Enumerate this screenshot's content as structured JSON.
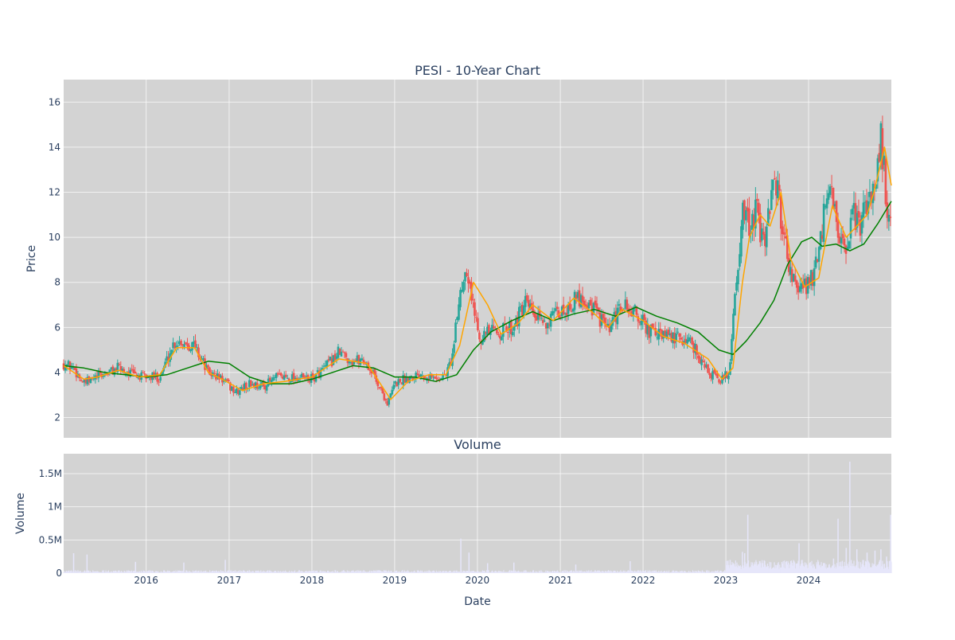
{
  "chart_data": [
    {
      "type": "candlestick",
      "title": "PESI - 10-Year Chart",
      "xlabel": "",
      "ylabel": "Price",
      "ylim": [
        1.1,
        17.0
      ],
      "xlim": [
        "2015-01-02",
        "2024-12-31"
      ],
      "y_ticks": [
        2,
        4,
        6,
        8,
        10,
        12,
        14,
        16
      ],
      "grid": true,
      "colors": {
        "up": "#26a69a",
        "down": "#ef5350",
        "ma_short": "#ffa500",
        "ma_long": "#008000",
        "background": "#d3d3d3"
      },
      "close_series": {
        "name": "Close",
        "x": [
          "2015-01-02",
          "2015-02-15",
          "2015-04-01",
          "2015-06-01",
          "2015-09-01",
          "2015-12-01",
          "2016-03-01",
          "2016-05-01",
          "2016-06-01",
          "2016-08-01",
          "2016-10-01",
          "2016-12-01",
          "2017-02-01",
          "2017-04-01",
          "2017-06-01",
          "2017-08-01",
          "2017-10-01",
          "2018-01-01",
          "2018-03-01",
          "2018-05-01",
          "2018-07-01",
          "2018-08-15",
          "2018-10-01",
          "2018-12-01",
          "2019-01-01",
          "2019-03-01",
          "2019-05-01",
          "2019-07-01",
          "2019-08-15",
          "2019-09-15",
          "2019-10-15",
          "2019-11-15",
          "2019-12-15",
          "2020-01-15",
          "2020-03-01",
          "2020-04-01",
          "2020-06-01",
          "2020-08-01",
          "2020-10-01",
          "2020-12-01",
          "2021-02-01",
          "2021-04-01",
          "2021-06-01",
          "2021-08-01",
          "2021-10-01",
          "2021-12-01",
          "2022-02-01",
          "2022-04-01",
          "2022-06-01",
          "2022-08-01",
          "2022-10-01",
          "2022-12-01",
          "2023-01-15",
          "2023-02-15",
          "2023-03-15",
          "2023-04-15",
          "2023-05-15",
          "2023-06-15",
          "2023-07-15",
          "2023-08-15",
          "2023-09-15",
          "2023-10-15",
          "2023-11-15",
          "2023-12-15",
          "2024-01-15",
          "2024-02-15",
          "2024-03-15",
          "2024-04-15",
          "2024-05-15",
          "2024-06-15",
          "2024-07-15",
          "2024-08-15",
          "2024-09-15",
          "2024-10-15",
          "2024-11-15",
          "2024-12-15",
          "2024-12-31"
        ],
        "y": [
          4.4,
          4.2,
          3.5,
          3.8,
          4.2,
          3.8,
          3.8,
          5.3,
          5.4,
          5.2,
          4.0,
          3.7,
          3.1,
          3.5,
          3.4,
          3.8,
          3.8,
          3.7,
          4.2,
          4.9,
          4.5,
          4.6,
          3.9,
          2.6,
          3.5,
          3.8,
          4.0,
          3.7,
          3.9,
          4.8,
          7.5,
          8.8,
          6.8,
          5.6,
          5.8,
          5.8,
          6.0,
          7.0,
          6.2,
          6.4,
          6.9,
          7.4,
          6.8,
          5.8,
          7.0,
          6.6,
          5.8,
          5.6,
          5.5,
          5.4,
          4.2,
          3.6,
          4.0,
          8.0,
          11.0,
          10.5,
          11.2,
          9.5,
          11.8,
          12.2,
          10.0,
          8.5,
          7.5,
          7.8,
          8.2,
          9.0,
          11.5,
          11.8,
          10.0,
          9.0,
          11.0,
          10.5,
          11.5,
          12.2,
          14.5,
          11.0,
          10.8
        ]
      },
      "ma_short": {
        "name": "MA short",
        "x": [
          "2015-01-02",
          "2015-04-01",
          "2015-06-01",
          "2015-09-01",
          "2015-12-01",
          "2016-03-01",
          "2016-05-15",
          "2016-08-01",
          "2016-10-01",
          "2016-12-01",
          "2017-03-01",
          "2017-06-01",
          "2017-09-01",
          "2018-01-01",
          "2018-05-01",
          "2018-09-01",
          "2018-12-15",
          "2019-03-01",
          "2019-06-01",
          "2019-08-15",
          "2019-10-15",
          "2019-12-15",
          "2020-02-15",
          "2020-04-15",
          "2020-07-01",
          "2020-09-01",
          "2020-12-01",
          "2021-03-01",
          "2021-06-01",
          "2021-08-01",
          "2021-10-01",
          "2022-01-01",
          "2022-04-01",
          "2022-07-01",
          "2022-10-15",
          "2022-12-15",
          "2023-02-01",
          "2023-03-15",
          "2023-04-15",
          "2023-06-01",
          "2023-07-15",
          "2023-09-01",
          "2023-10-15",
          "2023-12-15",
          "2024-02-15",
          "2024-04-15",
          "2024-06-15",
          "2024-08-01",
          "2024-09-15",
          "2024-10-15",
          "2024-12-01",
          "2024-12-31"
        ],
        "y": [
          4.3,
          3.7,
          3.8,
          4.1,
          3.8,
          3.9,
          5.1,
          5.1,
          4.0,
          3.7,
          3.2,
          3.5,
          3.6,
          3.8,
          4.6,
          4.4,
          2.8,
          3.6,
          3.9,
          3.9,
          5.2,
          8.0,
          7.0,
          5.7,
          6.2,
          7.0,
          6.3,
          7.3,
          6.6,
          6.0,
          6.8,
          6.3,
          5.6,
          5.3,
          4.6,
          3.7,
          4.2,
          8.0,
          10.0,
          11.0,
          10.5,
          12.0,
          9.0,
          7.8,
          8.2,
          11.4,
          10.0,
          10.5,
          11.0,
          12.0,
          14.0,
          12.3
        ]
      },
      "ma_long": {
        "name": "MA long",
        "x": [
          "2015-01-02",
          "2015-04-01",
          "2015-07-01",
          "2015-10-01",
          "2016-01-01",
          "2016-04-01",
          "2016-07-01",
          "2016-10-01",
          "2017-01-01",
          "2017-04-01",
          "2017-07-01",
          "2017-10-01",
          "2018-01-01",
          "2018-04-01",
          "2018-07-01",
          "2018-10-01",
          "2019-01-01",
          "2019-04-01",
          "2019-07-01",
          "2019-10-01",
          "2019-12-15",
          "2020-03-01",
          "2020-06-01",
          "2020-09-01",
          "2020-12-01",
          "2021-03-01",
          "2021-06-01",
          "2021-09-01",
          "2021-12-01",
          "2022-03-01",
          "2022-06-01",
          "2022-09-01",
          "2022-12-01",
          "2023-02-01",
          "2023-04-01",
          "2023-06-01",
          "2023-08-01",
          "2023-10-01",
          "2023-12-01",
          "2024-01-15",
          "2024-03-01",
          "2024-05-01",
          "2024-07-01",
          "2024-09-01",
          "2024-11-01",
          "2024-12-31"
        ],
        "y": [
          4.3,
          4.2,
          4.0,
          3.9,
          3.8,
          3.9,
          4.2,
          4.5,
          4.4,
          3.8,
          3.5,
          3.5,
          3.7,
          4.0,
          4.3,
          4.2,
          3.8,
          3.8,
          3.6,
          3.9,
          5.0,
          5.8,
          6.3,
          6.7,
          6.3,
          6.6,
          6.8,
          6.5,
          6.9,
          6.5,
          6.2,
          5.8,
          5.0,
          4.8,
          5.4,
          6.2,
          7.2,
          8.8,
          9.8,
          10.0,
          9.6,
          9.7,
          9.4,
          9.7,
          10.6,
          11.6
        ]
      }
    },
    {
      "type": "bar",
      "title": "Volume",
      "xlabel": "Date",
      "ylabel": "Volume",
      "ylim": [
        0,
        1800000
      ],
      "y_ticks": [
        0,
        500000,
        1000000,
        1500000
      ],
      "y_tick_labels": [
        "0",
        "0.5M",
        "1M",
        "1.5M"
      ],
      "x_ticks": [
        "2016",
        "2017",
        "2018",
        "2019",
        "2020",
        "2021",
        "2022",
        "2023",
        "2024"
      ],
      "x_tick_dates": [
        "2016-01-01",
        "2017-01-01",
        "2018-01-01",
        "2019-01-01",
        "2020-01-01",
        "2021-01-01",
        "2022-01-01",
        "2023-01-01",
        "2024-01-01"
      ],
      "bar_color": "#e6e6fa",
      "spikes": {
        "x": [
          "2015-02-15",
          "2015-04-15",
          "2015-11-15",
          "2016-06-15",
          "2016-12-15",
          "2019-10-20",
          "2019-11-25",
          "2020-02-15",
          "2020-06-10",
          "2021-03-10",
          "2021-11-05",
          "2023-01-20",
          "2023-03-15",
          "2023-03-25",
          "2023-04-08",
          "2023-08-15",
          "2023-11-20",
          "2024-04-20",
          "2024-05-10",
          "2024-06-15",
          "2024-07-01",
          "2024-08-01",
          "2024-09-15",
          "2024-10-20",
          "2024-11-15",
          "2024-12-10",
          "2024-12-28"
        ],
        "y": [
          300000,
          280000,
          170000,
          160000,
          200000,
          520000,
          310000,
          150000,
          160000,
          130000,
          180000,
          200000,
          320000,
          300000,
          880000,
          120000,
          450000,
          220000,
          820000,
          380000,
          1680000,
          360000,
          310000,
          340000,
          360000,
          250000,
          880000
        ]
      }
    }
  ]
}
